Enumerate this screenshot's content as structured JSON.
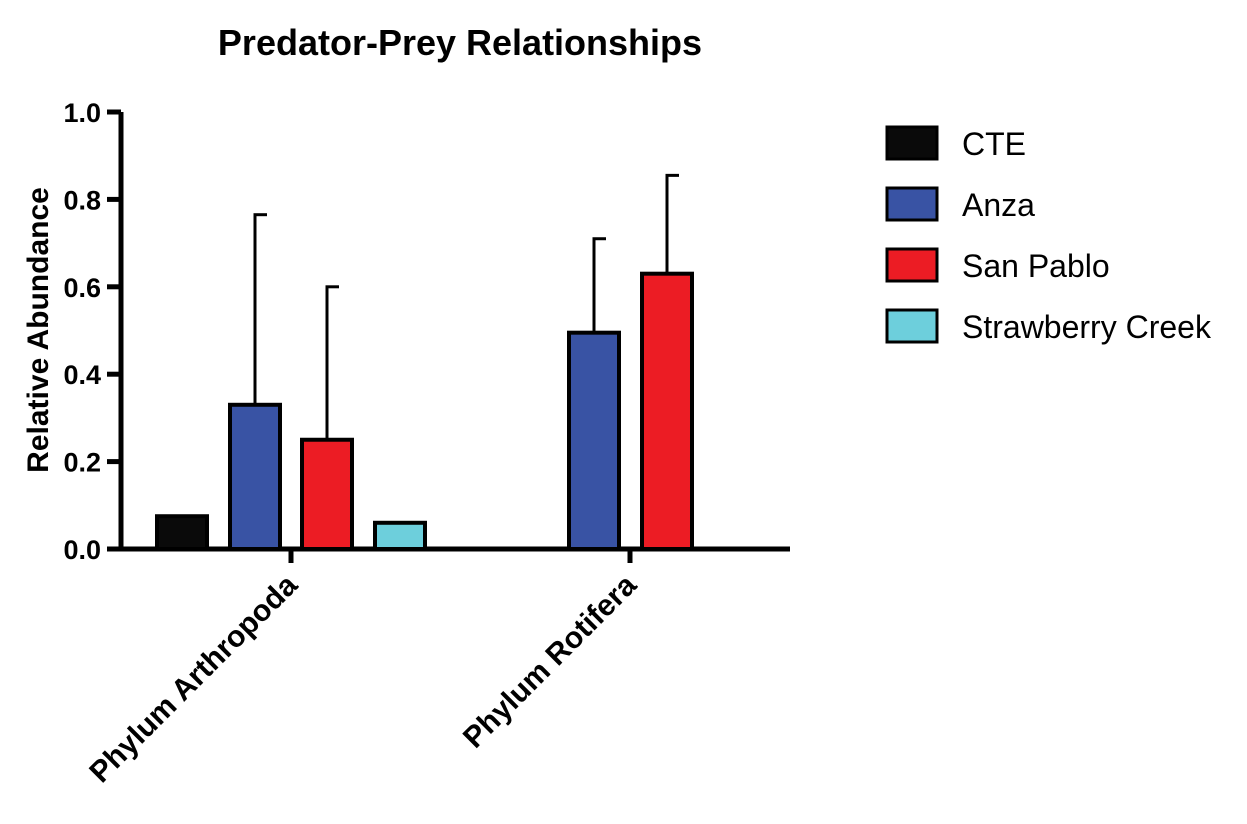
{
  "chart_data": {
    "type": "bar",
    "title": "Predator-Prey Relationships",
    "xlabel": "",
    "ylabel": "Relative Abundance",
    "ylim": [
      0,
      1.0
    ],
    "yticks": [
      "0.0",
      "0.2",
      "0.4",
      "0.6",
      "0.8",
      "1.0"
    ],
    "categories": [
      "Phylum Arthropoda",
      "Phylum Rotifera"
    ],
    "legend_position": "right",
    "grid": false,
    "series": [
      {
        "name": "CTE",
        "color": "#0a0a0a",
        "values": [
          0.075,
          null
        ],
        "errors": [
          null,
          null
        ]
      },
      {
        "name": "Anza",
        "color": "#3953a4",
        "values": [
          0.33,
          0.495
        ],
        "errors": [
          0.435,
          0.215
        ]
      },
      {
        "name": "San Pablo",
        "color": "#ec1c24",
        "values": [
          0.25,
          0.63
        ],
        "errors": [
          0.35,
          0.225
        ]
      },
      {
        "name": "Strawberry Creek",
        "color": "#6dcfdc",
        "values": [
          0.06,
          null
        ],
        "errors": [
          null,
          null
        ]
      }
    ]
  }
}
